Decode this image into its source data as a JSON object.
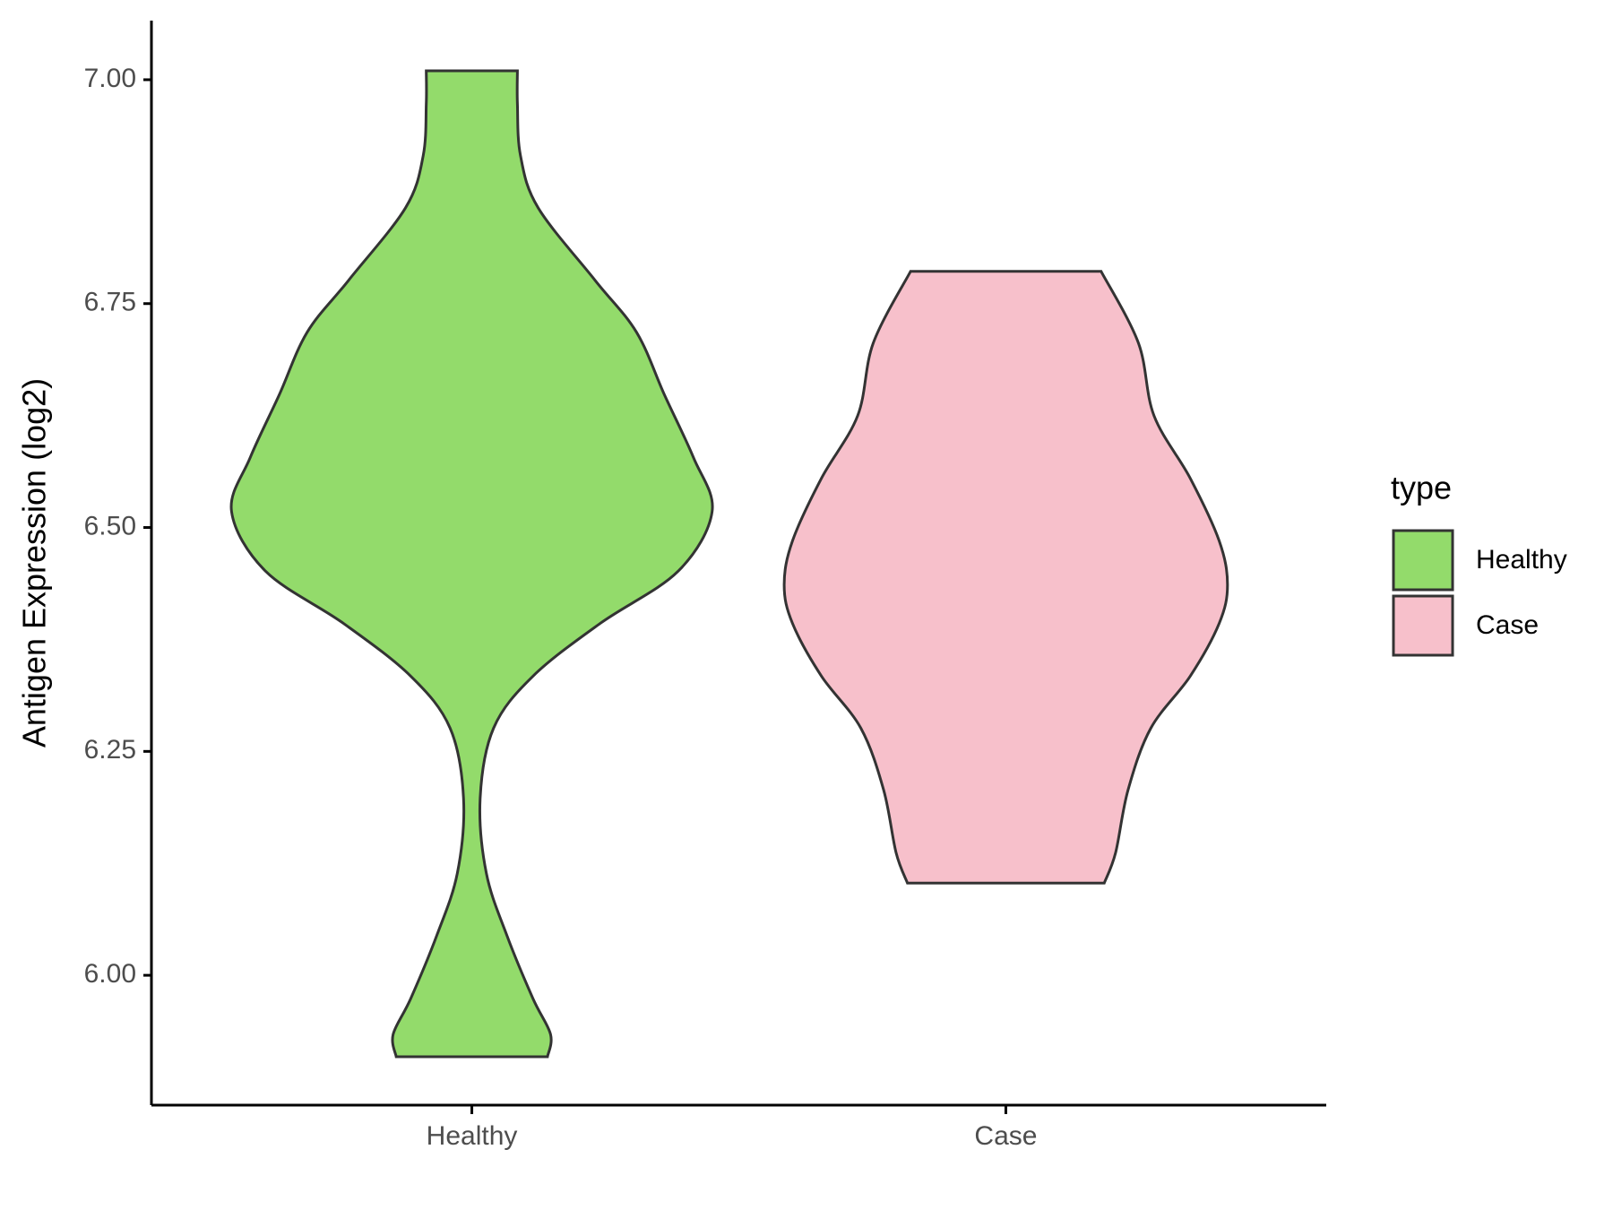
{
  "chart_data": {
    "type": "violin",
    "y_label": "Antigen Expression (log2)",
    "categories": [
      "Healthy",
      "Case"
    ],
    "ylim": [
      5.855,
      7.066
    ],
    "yticks": [
      {
        "value": 6,
        "label": "6.00"
      },
      {
        "value": 6.25,
        "label": "6.25"
      },
      {
        "value": 6.5,
        "label": "6.50"
      },
      {
        "value": 6.75,
        "label": "6.75"
      },
      {
        "value": 7,
        "label": "7.00"
      }
    ],
    "legend_title": "type",
    "legend_position": "right",
    "series": [
      {
        "name": "Healthy",
        "color": "#93db6b",
        "y": [
          5.909,
          5.934,
          5.974,
          6.044,
          6.114,
          6.197,
          6.276,
          6.334,
          6.393,
          6.451,
          6.518,
          6.578,
          6.648,
          6.718,
          6.776,
          6.857,
          6.915,
          6.973,
          7.01
        ],
        "widths": [
          0.73,
          0.76,
          0.59,
          0.34,
          0.14,
          0.08,
          0.21,
          0.59,
          1.24,
          1.99,
          2.32,
          2.14,
          1.86,
          1.59,
          1.19,
          0.64,
          0.47,
          0.44,
          0.44
        ]
      },
      {
        "name": "Case",
        "color": "#f7c0cb",
        "y": [
          6.103,
          6.137,
          6.207,
          6.276,
          6.334,
          6.393,
          6.436,
          6.485,
          6.555,
          6.625,
          6.706,
          6.786
        ],
        "widths": [
          0.95,
          1.06,
          1.18,
          1.4,
          1.78,
          2.06,
          2.14,
          2.06,
          1.78,
          1.43,
          1.28,
          0.92
        ]
      }
    ]
  }
}
